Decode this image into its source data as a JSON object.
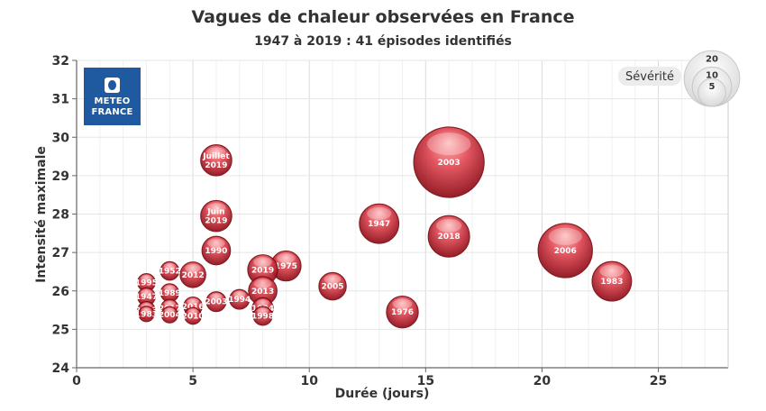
{
  "chart_data": {
    "type": "bubble",
    "title": "Vagues de chaleur observées en France",
    "subtitle": "1947 à 2019 : 41 épisodes identifiés",
    "xlabel": "Durée (jours)",
    "ylabel": "Intensité maximale",
    "xlim": [
      0,
      28
    ],
    "ylim": [
      24,
      32
    ],
    "xticks": [
      0,
      5,
      10,
      15,
      20,
      25
    ],
    "yticks": [
      24,
      25,
      26,
      27,
      28,
      29,
      30,
      31,
      32
    ],
    "grid": true,
    "legend": {
      "title": "Sévérité",
      "placement": "top-right",
      "sizes": [
        20,
        10,
        5
      ],
      "labels": [
        "20",
        "10",
        "5"
      ]
    },
    "logo_text": [
      "METEO",
      "FRANCE"
    ],
    "points": [
      {
        "x": 16,
        "y": 29.35,
        "size": 32,
        "label": "2003"
      },
      {
        "x": 21,
        "y": 27.05,
        "size": 19,
        "label": "2006"
      },
      {
        "x": 23,
        "y": 26.25,
        "size": 10,
        "label": "1983"
      },
      {
        "x": 16,
        "y": 27.42,
        "size": 11,
        "label": "2018"
      },
      {
        "x": 13,
        "y": 27.75,
        "size": 10,
        "label": "1947"
      },
      {
        "x": 14,
        "y": 25.45,
        "size": 6.5,
        "label": "1976"
      },
      {
        "x": 11,
        "y": 26.12,
        "size": 4.8,
        "label": "2005"
      },
      {
        "x": 9,
        "y": 26.65,
        "size": 5.8,
        "label": "1975"
      },
      {
        "x": 8,
        "y": 26.55,
        "size": 5.8,
        "label": "2019"
      },
      {
        "x": 8,
        "y": 26.0,
        "size": 5.2,
        "label": "2013"
      },
      {
        "x": 8,
        "y": 25.55,
        "size": 2.8,
        "label": "1994"
      },
      {
        "x": 8,
        "y": 25.35,
        "size": 2.3,
        "label": "1998"
      },
      {
        "x": 7,
        "y": 25.78,
        "size": 2.5,
        "label": "1994"
      },
      {
        "x": 6,
        "y": 29.4,
        "size": 6.2,
        "label": "Juillet 2019",
        "label_lines": [
          "Juillet",
          "2019"
        ]
      },
      {
        "x": 6,
        "y": 27.95,
        "size": 6.2,
        "label": "Juin 2019",
        "label_lines": [
          "Juin",
          "2019"
        ]
      },
      {
        "x": 6,
        "y": 27.05,
        "size": 5.2,
        "label": "1990"
      },
      {
        "x": 6,
        "y": 25.72,
        "size": 2.5,
        "label": "2003"
      },
      {
        "x": 5,
        "y": 26.42,
        "size": 4.2,
        "label": "2012"
      },
      {
        "x": 5,
        "y": 25.6,
        "size": 2.2,
        "label": "2016"
      },
      {
        "x": 5,
        "y": 25.35,
        "size": 1.8,
        "label": "2010"
      },
      {
        "x": 4,
        "y": 26.52,
        "size": 2.2,
        "label": "1952"
      },
      {
        "x": 4,
        "y": 25.95,
        "size": 2.1,
        "label": "1989"
      },
      {
        "x": 4,
        "y": 25.55,
        "size": 2.0,
        "label": "2017"
      },
      {
        "x": 4,
        "y": 25.38,
        "size": 1.7,
        "label": "2004"
      },
      {
        "x": 3,
        "y": 26.22,
        "size": 2.0,
        "label": "1995"
      },
      {
        "x": 3,
        "y": 25.85,
        "size": 2.0,
        "label": "1947"
      },
      {
        "x": 3,
        "y": 25.5,
        "size": 1.9,
        "label": "2013"
      },
      {
        "x": 3,
        "y": 25.4,
        "size": 1.5,
        "label": "1983"
      }
    ]
  },
  "colors": {
    "bubble_light": "#ff9c9c",
    "bubble_mid": "#e24a55",
    "bubble_dark": "#8c0b16",
    "grid": "#e6e6e6",
    "axis": "#666666",
    "text": "#333333",
    "logo_bg": "#1f5aa0"
  }
}
